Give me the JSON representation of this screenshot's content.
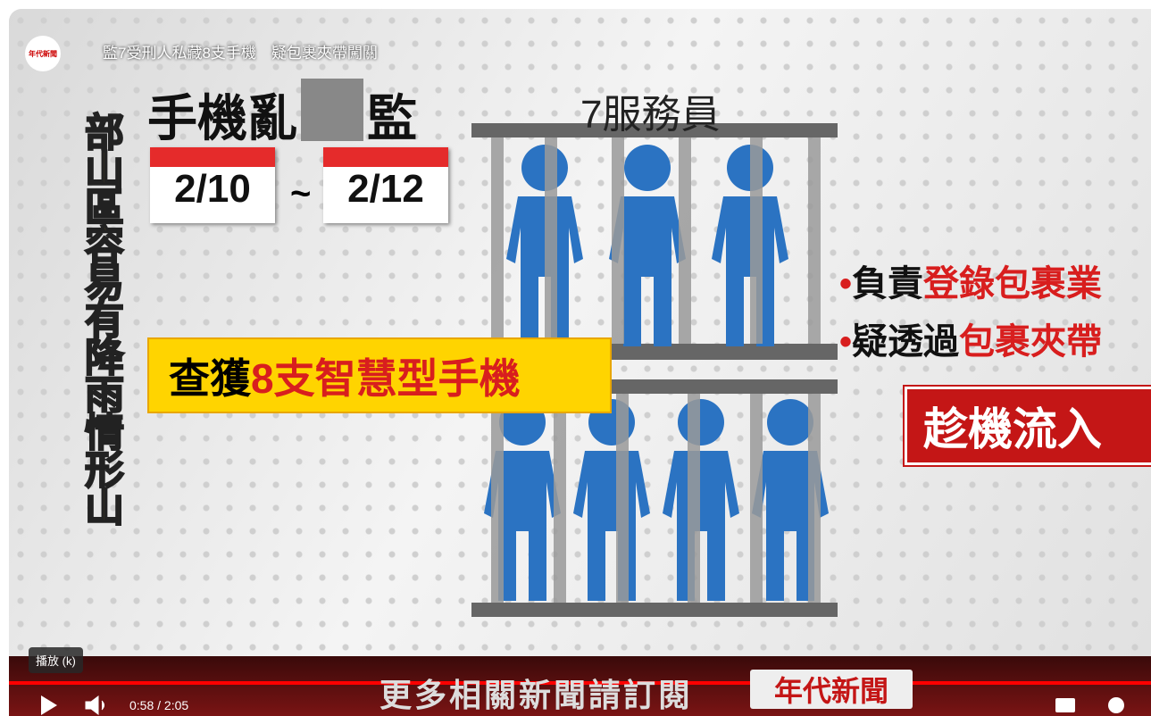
{
  "player": {
    "title": "監7受刑人私藏8支手機　疑包裹夾帶闖關",
    "channel_logo": "年代新聞",
    "tooltip": "播放 (k)",
    "time": "0:58 / 2:05"
  },
  "video": {
    "headline": [
      "手機亂",
      "監"
    ],
    "vertical_ticker": "部山區容易有降雨情形山",
    "date_start": "2/10",
    "date_sep": "~",
    "date_end": "2/12",
    "caption_label": "7服務員",
    "seized": {
      "prefix": "查獲",
      "highlight": "8支智慧型手機"
    },
    "bullets": [
      {
        "prefix": "負責",
        "highlight": "登錄包裹業"
      },
      {
        "prefix": "疑透過",
        "highlight": "包裹夾帶"
      }
    ],
    "callout": "趁機流入",
    "banner": {
      "text": "更多相關新聞請訂閱",
      "brand": "年代新聞"
    }
  }
}
